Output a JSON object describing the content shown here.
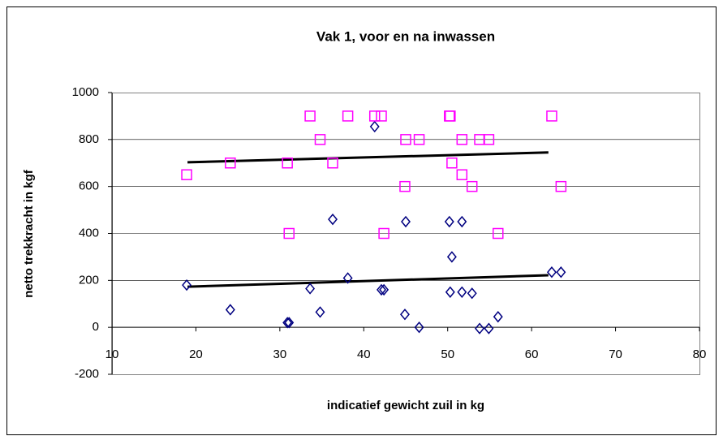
{
  "chart_data": {
    "type": "scatter",
    "title": "Vak 1, voor en na inwassen",
    "x_label": "indicatief gewicht zuil in kg",
    "y_label": "netto trekkracht in kgf",
    "xlim": [
      10,
      80
    ],
    "xticks": [
      10,
      20,
      30,
      40,
      50,
      60,
      70,
      80
    ],
    "ylim": [
      -200,
      1000
    ],
    "yticks": [
      -200,
      0,
      200,
      400,
      600,
      800,
      1000
    ],
    "grid": true,
    "series": [
      {
        "color": "#000080",
        "marker": "diamond",
        "x": [
          18.9,
          24.1,
          30.9,
          31.1,
          33.6,
          34.8,
          36.3,
          38.1,
          41.3,
          42.1,
          42.4,
          44.9,
          45.0,
          46.6,
          50.2,
          50.3,
          50.5,
          51.7,
          51.7,
          52.9,
          53.8,
          54.9,
          56.0,
          62.4,
          63.5
        ],
        "values": [
          180,
          75,
          20,
          20,
          165,
          65,
          460,
          210,
          855,
          160,
          160,
          55,
          450,
          0,
          450,
          150,
          300,
          450,
          150,
          145,
          -5,
          -5,
          45,
          235,
          235
        ]
      },
      {
        "color": "#ff00ff",
        "marker": "square",
        "x": [
          18.9,
          24.1,
          30.9,
          31.1,
          33.6,
          34.8,
          36.3,
          38.1,
          41.3,
          42.1,
          42.4,
          44.9,
          45.0,
          46.6,
          50.2,
          50.3,
          50.5,
          51.7,
          51.7,
          52.9,
          53.8,
          54.9,
          56.0,
          62.4,
          63.5
        ],
        "values": [
          650,
          700,
          700,
          400,
          900,
          800,
          700,
          900,
          900,
          900,
          400,
          600,
          800,
          800,
          900,
          900,
          700,
          650,
          800,
          600,
          800,
          800,
          400,
          900,
          600
        ]
      }
    ],
    "trendlines": [
      {
        "color": "#000000",
        "x": [
          19,
          62
        ],
        "y": [
          703,
          745
        ]
      },
      {
        "color": "#000000",
        "x": [
          19,
          62
        ],
        "y": [
          173,
          222
        ]
      }
    ]
  }
}
